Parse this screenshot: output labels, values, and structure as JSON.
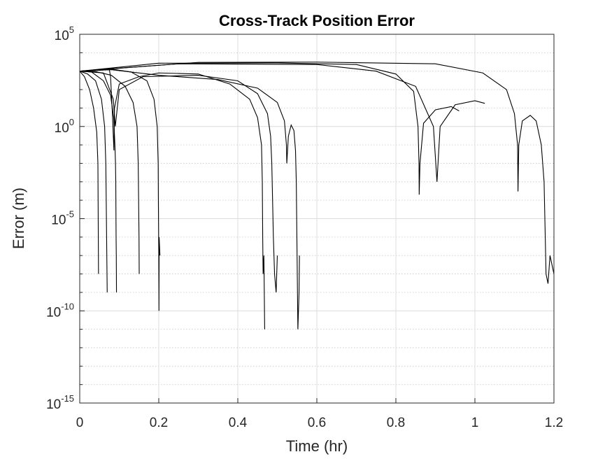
{
  "chart_data": {
    "type": "line",
    "title": "Cross-Track Position Error",
    "xlabel": "Time (hr)",
    "ylabel": "Error (m)",
    "xlim": [
      0,
      1.2
    ],
    "ylim": [
      1e-15,
      100000
    ],
    "yscale": "log",
    "grid": true,
    "minor_grid": true,
    "legend": "none",
    "x_ticks": [
      "0",
      "0.2",
      "0.4",
      "0.6",
      "0.8",
      "1",
      "1.2"
    ],
    "y_ticks": [
      {
        "base": "10",
        "exp": "5"
      },
      {
        "base": "10",
        "exp": "0"
      },
      {
        "base": "10",
        "exp": "-5"
      },
      {
        "base": "10",
        "exp": "-10"
      },
      {
        "base": "10",
        "exp": "-15"
      }
    ],
    "line_color": "#000000",
    "series": [
      {
        "values": [
          [
            0,
            1000
          ],
          [
            0.012,
            500
          ],
          [
            0.025,
            100
          ],
          [
            0.035,
            10
          ],
          [
            0.043,
            0.5
          ],
          [
            0.046,
            0.01
          ],
          [
            0.0465,
            0.0001
          ],
          [
            0.047,
            1e-06
          ],
          [
            0.0475,
            1e-08
          ]
        ]
      },
      {
        "values": [
          [
            0,
            1000
          ],
          [
            0.02,
            700
          ],
          [
            0.04,
            300
          ],
          [
            0.055,
            30
          ],
          [
            0.063,
            1
          ],
          [
            0.066,
            0.01
          ],
          [
            0.067,
            0.0001
          ],
          [
            0.068,
            1e-06
          ],
          [
            0.069,
            1e-08
          ],
          [
            0.0695,
            1e-09
          ]
        ]
      },
      {
        "values": [
          [
            0,
            1000
          ],
          [
            0.03,
            900
          ],
          [
            0.06,
            300
          ],
          [
            0.078,
            50
          ],
          [
            0.086,
            3
          ],
          [
            0.089,
            0.1
          ],
          [
            0.0905,
            0.01
          ],
          [
            0.0912,
            0.001
          ],
          [
            0.092,
            1e-06
          ],
          [
            0.0925,
            1e-07
          ],
          [
            0.093,
            1e-09
          ]
        ]
      },
      {
        "values": [
          [
            0,
            1000
          ],
          [
            0.04,
            950
          ],
          [
            0.08,
            600
          ],
          [
            0.115,
            150
          ],
          [
            0.135,
            20
          ],
          [
            0.145,
            1
          ],
          [
            0.148,
            0.01
          ],
          [
            0.149,
            0.0001
          ],
          [
            0.15,
            1e-06
          ],
          [
            0.1505,
            1e-08
          ]
        ]
      },
      {
        "values": [
          [
            0,
            1000
          ],
          [
            0.08,
            1200
          ],
          [
            0.13,
            900
          ],
          [
            0.17,
            300
          ],
          [
            0.188,
            30
          ],
          [
            0.196,
            1
          ],
          [
            0.1985,
            0.01
          ],
          [
            0.199,
            0.0001
          ],
          [
            0.2,
            1e-07
          ],
          [
            0.2005,
            1e-10
          ],
          [
            0.201,
            1e-06
          ],
          [
            0.203,
            1e-07
          ]
        ]
      },
      {
        "values": [
          [
            0,
            1000
          ],
          [
            0.075,
            1200
          ],
          [
            0.078,
            500
          ],
          [
            0.082,
            10
          ],
          [
            0.0865,
            0.05
          ],
          [
            0.088,
            10
          ],
          [
            0.1,
            200
          ],
          [
            0.15,
            500
          ],
          [
            0.2,
            800
          ],
          [
            0.3,
            700
          ],
          [
            0.38,
            200
          ],
          [
            0.43,
            30
          ],
          [
            0.45,
            3
          ],
          [
            0.46,
            0.1
          ],
          [
            0.462,
            0.001
          ],
          [
            0.463,
            1e-06
          ],
          [
            0.464,
            1e-08
          ],
          [
            0.466,
            1e-07
          ],
          [
            0.468,
            1e-11
          ]
        ]
      },
      {
        "values": [
          [
            0,
            1000
          ],
          [
            0.06,
            800
          ],
          [
            0.085,
            30
          ],
          [
            0.09,
            1
          ],
          [
            0.1,
            100
          ],
          [
            0.16,
            500
          ],
          [
            0.3,
            600
          ],
          [
            0.4,
            300
          ],
          [
            0.45,
            60
          ],
          [
            0.475,
            5
          ],
          [
            0.483,
            0.3
          ],
          [
            0.486,
            0.01
          ],
          [
            0.488,
            0.0001
          ],
          [
            0.49,
            1e-06
          ],
          [
            0.493,
            1e-08
          ],
          [
            0.497,
            1e-09
          ],
          [
            0.5,
            1e-07
          ]
        ]
      },
      {
        "values": [
          [
            0,
            1000
          ],
          [
            0.08,
            1300
          ],
          [
            0.13,
            900
          ],
          [
            0.2,
            600
          ],
          [
            0.35,
            350
          ],
          [
            0.45,
            120
          ],
          [
            0.5,
            20
          ],
          [
            0.518,
            2
          ],
          [
            0.523,
            0.1
          ],
          [
            0.524,
            0.01
          ],
          [
            0.528,
            0.3
          ],
          [
            0.535,
            1.2
          ],
          [
            0.542,
            0.6
          ],
          [
            0.546,
            0.05
          ],
          [
            0.548,
            0.001
          ],
          [
            0.55,
            1e-07
          ],
          [
            0.552,
            1e-11
          ],
          [
            0.555,
            1e-09
          ],
          [
            0.556,
            1e-07
          ]
        ]
      },
      {
        "values": [
          [
            0,
            1000
          ],
          [
            0.2,
            2700
          ],
          [
            0.5,
            2800
          ],
          [
            0.7,
            2300
          ],
          [
            0.8,
            700
          ],
          [
            0.845,
            80
          ],
          [
            0.856,
            1
          ],
          [
            0.8585,
            0.01
          ],
          [
            0.859,
            0.0002
          ],
          [
            0.861,
            0.01
          ],
          [
            0.87,
            1.5
          ],
          [
            0.9,
            8
          ],
          [
            0.94,
            12
          ],
          [
            0.96,
            7
          ]
        ]
      },
      {
        "values": [
          [
            0,
            1000
          ],
          [
            0.25,
            2500
          ],
          [
            0.6,
            2300
          ],
          [
            0.75,
            1000
          ],
          [
            0.85,
            150
          ],
          [
            0.895,
            1
          ],
          [
            0.904,
            0.001
          ],
          [
            0.912,
            1
          ],
          [
            0.95,
            15
          ],
          [
            1.0,
            25
          ],
          [
            1.025,
            18
          ]
        ]
      },
      {
        "values": [
          [
            0,
            1000
          ],
          [
            0.3,
            3000
          ],
          [
            0.6,
            3100
          ],
          [
            0.9,
            2500
          ],
          [
            1.02,
            800
          ],
          [
            1.08,
            100
          ],
          [
            1.1,
            5
          ],
          [
            1.108,
            0.1
          ],
          [
            1.109,
            0.0003
          ],
          [
            1.111,
            0.1
          ],
          [
            1.12,
            2
          ],
          [
            1.14,
            4
          ],
          [
            1.155,
            2
          ],
          [
            1.168,
            0.1
          ],
          [
            1.175,
            0.001
          ],
          [
            1.178,
            1e-06
          ],
          [
            1.18,
            1e-08
          ],
          [
            1.185,
            3e-09
          ],
          [
            1.19,
            1e-07
          ],
          [
            1.2,
            1e-08
          ]
        ]
      }
    ]
  }
}
